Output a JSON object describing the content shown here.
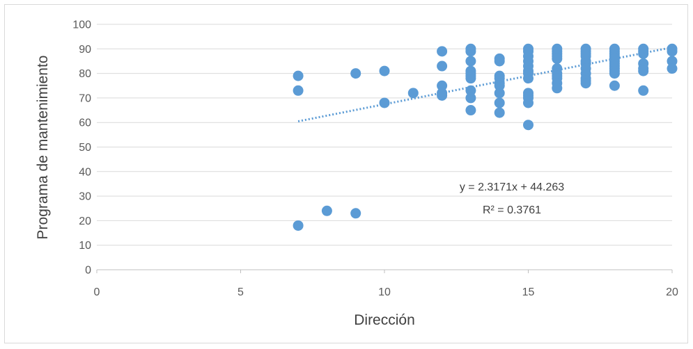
{
  "chart_data": {
    "type": "scatter",
    "xlabel": "Dirección",
    "ylabel": "Programa de mantenimiento",
    "xlim": [
      0,
      20
    ],
    "ylim": [
      0,
      100
    ],
    "x_ticks": [
      0,
      5,
      10,
      15,
      20
    ],
    "y_ticks": [
      0,
      10,
      20,
      30,
      40,
      50,
      60,
      70,
      80,
      90,
      100
    ],
    "grid": true,
    "legend": "none",
    "marker_color": "#5b9bd5",
    "trendline_color": "#5b9bd5",
    "series": [
      {
        "points": [
          [
            7,
            79
          ],
          [
            7,
            73
          ],
          [
            7,
            18
          ],
          [
            8,
            24
          ],
          [
            9,
            80
          ],
          [
            9,
            23
          ],
          [
            10,
            81
          ],
          [
            10,
            68
          ],
          [
            11,
            72
          ],
          [
            12,
            89
          ],
          [
            12,
            83
          ],
          [
            12,
            75
          ],
          [
            12,
            72
          ],
          [
            12,
            71
          ],
          [
            13,
            90
          ],
          [
            13,
            89
          ],
          [
            13,
            85
          ],
          [
            13,
            81
          ],
          [
            13,
            80
          ],
          [
            13,
            79
          ],
          [
            13,
            78
          ],
          [
            13,
            73
          ],
          [
            13,
            70
          ],
          [
            13,
            65
          ],
          [
            14,
            86
          ],
          [
            14,
            85
          ],
          [
            14,
            79
          ],
          [
            14,
            78
          ],
          [
            14,
            76
          ],
          [
            14,
            75
          ],
          [
            14,
            72
          ],
          [
            14,
            68
          ],
          [
            14,
            64
          ],
          [
            15,
            90
          ],
          [
            15,
            89
          ],
          [
            15,
            87
          ],
          [
            15,
            85
          ],
          [
            15,
            83
          ],
          [
            15,
            81
          ],
          [
            15,
            80
          ],
          [
            15,
            78
          ],
          [
            15,
            72
          ],
          [
            15,
            71
          ],
          [
            15,
            70
          ],
          [
            15,
            68
          ],
          [
            15,
            59
          ],
          [
            16,
            90
          ],
          [
            16,
            89
          ],
          [
            16,
            88
          ],
          [
            16,
            87
          ],
          [
            16,
            86
          ],
          [
            16,
            82
          ],
          [
            16,
            80
          ],
          [
            16,
            79
          ],
          [
            16,
            78
          ],
          [
            16,
            76
          ],
          [
            16,
            74
          ],
          [
            17,
            90
          ],
          [
            17,
            89
          ],
          [
            17,
            88
          ],
          [
            17,
            87
          ],
          [
            17,
            85
          ],
          [
            17,
            84
          ],
          [
            17,
            82
          ],
          [
            17,
            80
          ],
          [
            17,
            78
          ],
          [
            17,
            77
          ],
          [
            17,
            76
          ],
          [
            18,
            90
          ],
          [
            18,
            89
          ],
          [
            18,
            88
          ],
          [
            18,
            87
          ],
          [
            18,
            86
          ],
          [
            18,
            85
          ],
          [
            18,
            84
          ],
          [
            18,
            83
          ],
          [
            18,
            82
          ],
          [
            18,
            81
          ],
          [
            18,
            80
          ],
          [
            18,
            75
          ],
          [
            19,
            90
          ],
          [
            19,
            89
          ],
          [
            19,
            88
          ],
          [
            19,
            84
          ],
          [
            19,
            82
          ],
          [
            19,
            81
          ],
          [
            19,
            73
          ],
          [
            20,
            90
          ],
          [
            20,
            89
          ],
          [
            20,
            85
          ],
          [
            20,
            82
          ]
        ]
      }
    ],
    "trendline": {
      "type": "linear",
      "slope": 2.3171,
      "intercept": 44.263,
      "x_range": [
        7,
        20
      ],
      "equation_label": "y = 2.3171x + 44.263",
      "r2_label": "R² = 0.3761"
    }
  }
}
